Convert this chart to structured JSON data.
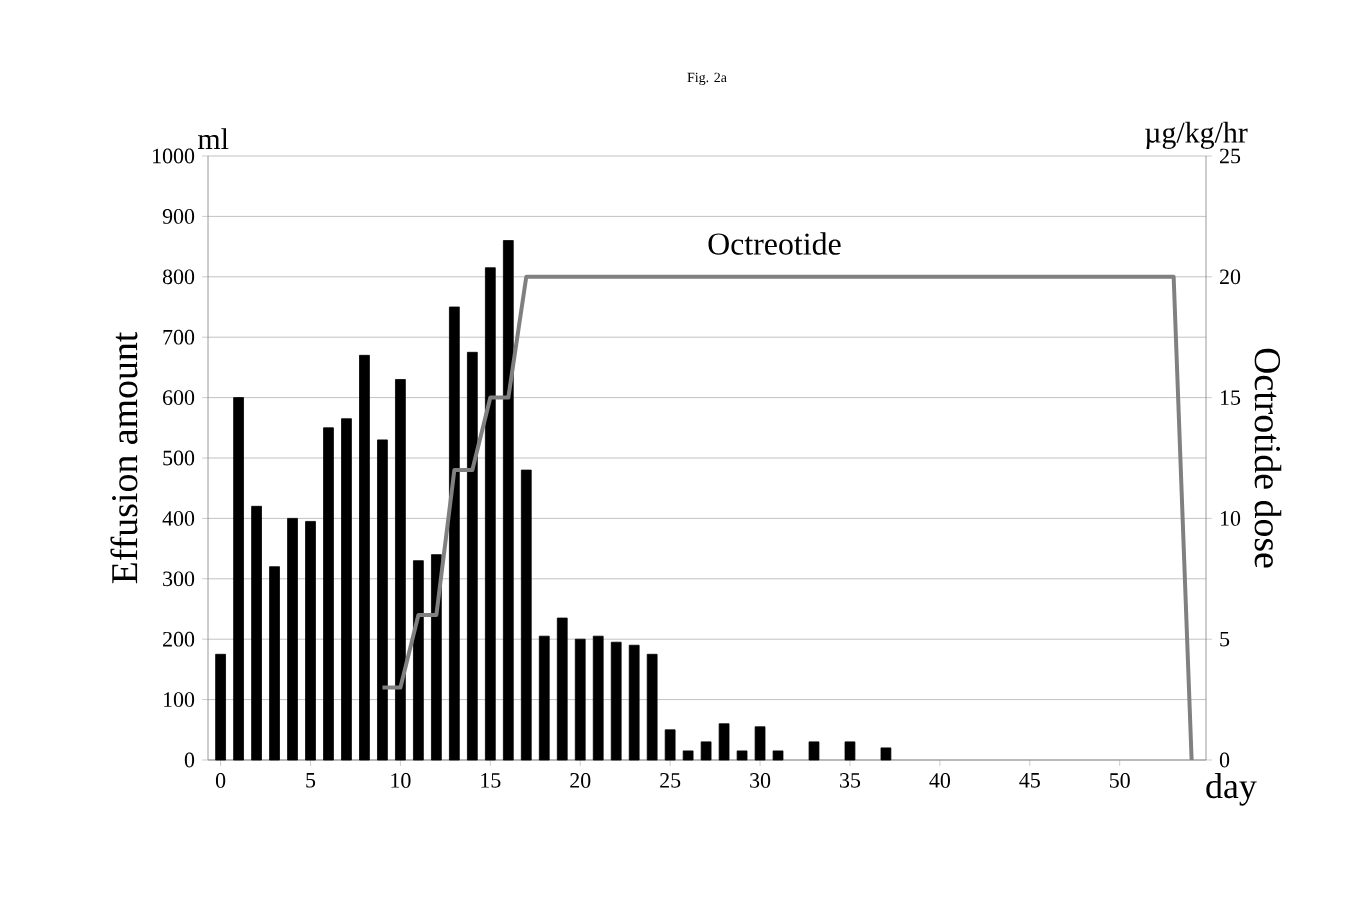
{
  "chart_data": {
    "type": "bar",
    "title": "Fig. 2a",
    "xlabel": "day",
    "ylabel": "Effusion amount",
    "y2label": "Octrotide dose",
    "annotations": [
      "ml",
      "µg/kg/hr",
      "Octreotide"
    ],
    "xlim": [
      -0.7,
      54.8
    ],
    "xticks": [
      0,
      5,
      10,
      15,
      20,
      25,
      30,
      35,
      40,
      45,
      50
    ],
    "ylim": [
      0,
      1000
    ],
    "yticks": [
      0,
      100,
      200,
      300,
      400,
      500,
      600,
      700,
      800,
      900,
      1000
    ],
    "y2lim": [
      0,
      25
    ],
    "y2ticks": [
      0,
      5,
      10,
      15,
      20,
      25
    ],
    "grid": "y",
    "series": [
      {
        "color": "#000000",
        "x": [
          0,
          1,
          2,
          3,
          4,
          5,
          6,
          7,
          8,
          9,
          10,
          11,
          12,
          13,
          14,
          15,
          16,
          17,
          18,
          19,
          20,
          21,
          22,
          23,
          24,
          25,
          26,
          27,
          28,
          29,
          30,
          31,
          33,
          35,
          37
        ],
        "values": [
          175,
          600,
          420,
          320,
          400,
          395,
          550,
          565,
          670,
          530,
          630,
          330,
          340,
          750,
          675,
          815,
          860,
          480,
          205,
          235,
          200,
          205,
          195,
          190,
          175,
          50,
          15,
          30,
          60,
          15,
          55,
          15,
          30,
          30,
          20
        ]
      },
      {
        "type": "line",
        "axis": "y2",
        "color": "#808080",
        "x": [
          9,
          10,
          11,
          12,
          13,
          14,
          15,
          16,
          17,
          53,
          54
        ],
        "values": [
          3,
          3,
          6,
          6,
          12,
          12,
          15,
          15,
          20,
          20,
          0
        ]
      }
    ]
  }
}
